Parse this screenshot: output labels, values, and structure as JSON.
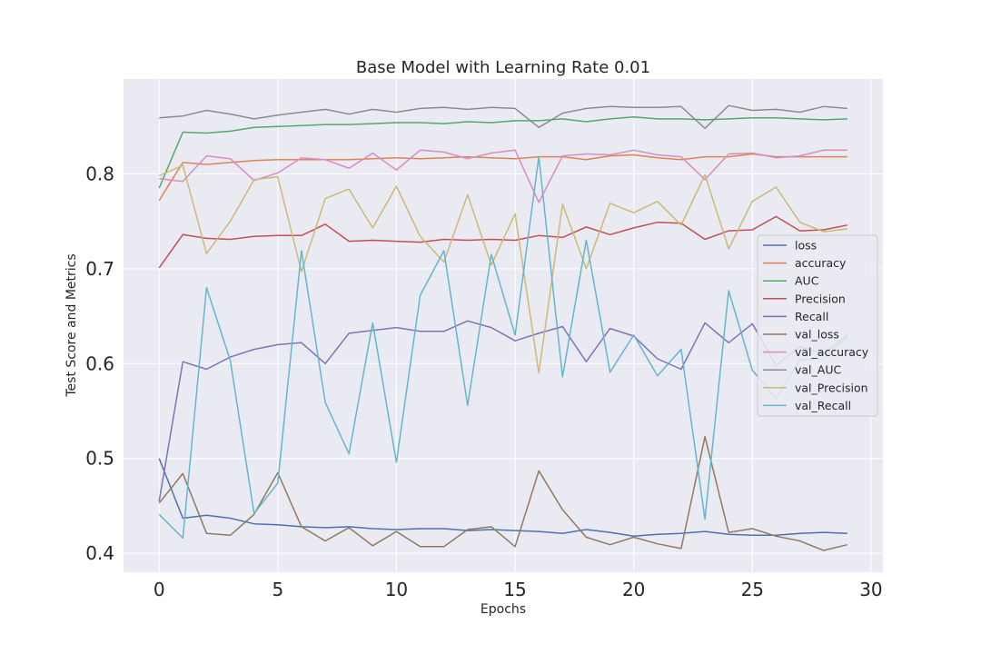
{
  "chart_data": {
    "type": "line",
    "title": "Base Model with Learning Rate 0.01",
    "xlabel": "Epochs",
    "ylabel": "Test Score and Metrics",
    "xlim": [
      -1.5,
      30.5
    ],
    "ylim": [
      0.38,
      0.9
    ],
    "xticks": [
      0,
      5,
      10,
      15,
      20,
      25,
      30
    ],
    "yticks": [
      0.4,
      0.5,
      0.6,
      0.7,
      0.8
    ],
    "ytick_labels": [
      "0.4",
      "0.5",
      "0.6",
      "0.7",
      "0.8"
    ],
    "grid": true,
    "legend_position": "center-right",
    "x": [
      0,
      1,
      2,
      3,
      4,
      5,
      6,
      7,
      8,
      9,
      10,
      11,
      12,
      13,
      14,
      15,
      16,
      17,
      18,
      19,
      20,
      21,
      22,
      23,
      24,
      25,
      26,
      27,
      28,
      29
    ],
    "series": [
      {
        "name": "loss",
        "color": "#4c72b0",
        "values": [
          0.5,
          0.437,
          0.44,
          0.437,
          0.431,
          0.43,
          0.428,
          0.427,
          0.428,
          0.426,
          0.425,
          0.426,
          0.426,
          0.424,
          0.425,
          0.424,
          0.423,
          0.421,
          0.425,
          0.422,
          0.418,
          0.42,
          0.421,
          0.423,
          0.42,
          0.419,
          0.419,
          0.421,
          0.422,
          0.421
        ]
      },
      {
        "name": "accuracy",
        "color": "#dd8452",
        "values": [
          0.772,
          0.812,
          0.81,
          0.812,
          0.814,
          0.815,
          0.815,
          0.815,
          0.815,
          0.816,
          0.817,
          0.816,
          0.817,
          0.818,
          0.817,
          0.816,
          0.818,
          0.818,
          0.815,
          0.819,
          0.82,
          0.817,
          0.815,
          0.818,
          0.818,
          0.821,
          0.818,
          0.818,
          0.818,
          0.818
        ]
      },
      {
        "name": "AUC",
        "color": "#55a868",
        "values": [
          0.785,
          0.844,
          0.843,
          0.845,
          0.849,
          0.85,
          0.851,
          0.852,
          0.852,
          0.853,
          0.854,
          0.854,
          0.853,
          0.855,
          0.854,
          0.856,
          0.856,
          0.858,
          0.855,
          0.858,
          0.86,
          0.858,
          0.858,
          0.857,
          0.858,
          0.859,
          0.859,
          0.858,
          0.857,
          0.858
        ]
      },
      {
        "name": "Precision",
        "color": "#c44e52",
        "values": [
          0.701,
          0.736,
          0.732,
          0.731,
          0.734,
          0.735,
          0.735,
          0.747,
          0.729,
          0.73,
          0.729,
          0.728,
          0.731,
          0.73,
          0.731,
          0.73,
          0.735,
          0.733,
          0.744,
          0.736,
          0.743,
          0.749,
          0.748,
          0.731,
          0.74,
          0.741,
          0.755,
          0.74,
          0.741,
          0.746
        ]
      },
      {
        "name": "Recall",
        "color": "#8172b3",
        "values": [
          0.455,
          0.602,
          0.594,
          0.607,
          0.615,
          0.62,
          0.622,
          0.6,
          0.632,
          0.635,
          0.638,
          0.634,
          0.634,
          0.645,
          0.638,
          0.624,
          0.632,
          0.639,
          0.602,
          0.637,
          0.629,
          0.605,
          0.594,
          0.643,
          0.622,
          0.642,
          0.598,
          0.618,
          0.61,
          0.63
        ]
      },
      {
        "name": "val_loss",
        "color": "#937860",
        "values": [
          0.453,
          0.484,
          0.421,
          0.419,
          0.441,
          0.485,
          0.428,
          0.413,
          0.427,
          0.408,
          0.423,
          0.407,
          0.407,
          0.425,
          0.428,
          0.407,
          0.487,
          0.446,
          0.417,
          0.409,
          0.417,
          0.41,
          0.405,
          0.523,
          0.422,
          0.426,
          0.418,
          0.413,
          0.403,
          0.409
        ]
      },
      {
        "name": "val_accuracy",
        "color": "#da8bc3",
        "values": [
          0.795,
          0.792,
          0.819,
          0.816,
          0.793,
          0.801,
          0.817,
          0.815,
          0.806,
          0.822,
          0.804,
          0.825,
          0.823,
          0.816,
          0.822,
          0.825,
          0.77,
          0.819,
          0.821,
          0.82,
          0.825,
          0.82,
          0.818,
          0.794,
          0.821,
          0.822,
          0.817,
          0.819,
          0.825,
          0.825
        ]
      },
      {
        "name": "val_AUC",
        "color": "#8c8c8c",
        "values": [
          0.859,
          0.861,
          0.867,
          0.863,
          0.858,
          0.862,
          0.865,
          0.868,
          0.863,
          0.868,
          0.865,
          0.869,
          0.87,
          0.868,
          0.87,
          0.869,
          0.849,
          0.864,
          0.869,
          0.871,
          0.87,
          0.87,
          0.871,
          0.848,
          0.872,
          0.867,
          0.868,
          0.865,
          0.871,
          0.869
        ]
      },
      {
        "name": "val_Precision",
        "color": "#ccb974",
        "values": [
          0.798,
          0.809,
          0.716,
          0.75,
          0.794,
          0.797,
          0.697,
          0.774,
          0.784,
          0.743,
          0.787,
          0.734,
          0.707,
          0.778,
          0.704,
          0.758,
          0.59,
          0.768,
          0.7,
          0.769,
          0.759,
          0.771,
          0.746,
          0.799,
          0.721,
          0.771,
          0.786,
          0.749,
          0.739,
          0.742
        ]
      },
      {
        "name": "val_Recall",
        "color": "#64b5cd",
        "values": [
          0.441,
          0.416,
          0.68,
          0.603,
          0.442,
          0.474,
          0.719,
          0.559,
          0.505,
          0.643,
          0.496,
          0.672,
          0.719,
          0.556,
          0.715,
          0.63,
          0.818,
          0.586,
          0.73,
          0.591,
          0.63,
          0.587,
          0.615,
          0.436,
          0.677,
          0.593,
          0.563,
          0.604,
          0.605,
          0.628
        ]
      }
    ]
  }
}
